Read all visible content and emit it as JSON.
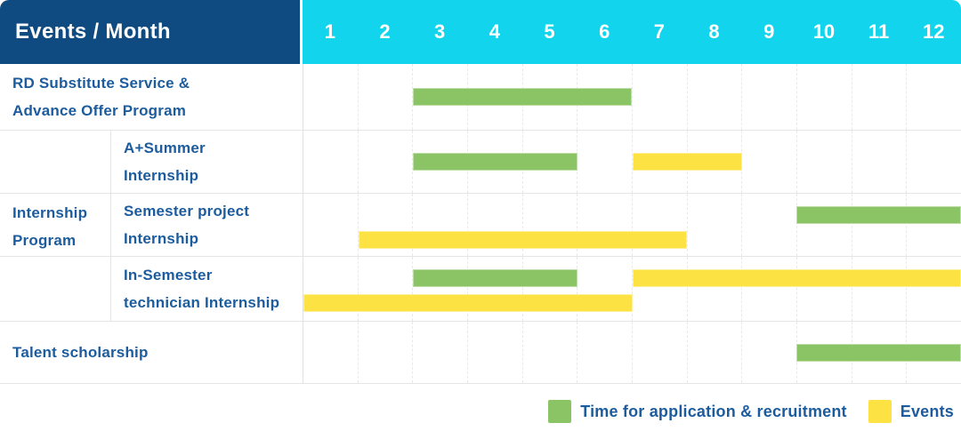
{
  "header": {
    "title": "Events / Month"
  },
  "colors": {
    "header_left_bg": "#0f4b80",
    "header_months_bg": "#12d4ec",
    "header_text": "#ffffff",
    "label_text": "#1c5c9e",
    "grid_line": "#e9e9e9",
    "row_border": "#e5e5e5",
    "application": "#8bc464",
    "events": "#fde244"
  },
  "chart_data": {
    "type": "gantt",
    "title": "Events / Month",
    "x_axis_label": "Month",
    "months": [
      1,
      2,
      3,
      4,
      5,
      6,
      7,
      8,
      9,
      10,
      11,
      12
    ],
    "legend_position": "bottom-right",
    "legend": [
      {
        "key": "application",
        "label": "Time for application & recruitment",
        "color": "#8bc464"
      },
      {
        "key": "events",
        "label": "Events",
        "color": "#fde244"
      }
    ],
    "group": {
      "label": "Internship Program",
      "lines": [
        "Internship",
        "Program"
      ]
    },
    "rows": [
      {
        "label": "RD Substitute Service & Advance Offer Program",
        "lines": [
          "RD Substitute Service &",
          "Advance Offer Program"
        ],
        "group": false,
        "bars": [
          {
            "series": "application",
            "start_month": 3,
            "end_month": 6,
            "track": "single"
          }
        ]
      },
      {
        "label": "A+Summer Internship",
        "lines": [
          "A+Summer",
          "Internship"
        ],
        "group": true,
        "bars": [
          {
            "series": "application",
            "start_month": 3,
            "end_month": 5,
            "track": "single"
          },
          {
            "series": "events",
            "start_month": 7,
            "end_month": 8,
            "track": "single"
          }
        ]
      },
      {
        "label": "Semester project Internship",
        "lines": [
          "Semester project",
          "Internship"
        ],
        "group": true,
        "bars": [
          {
            "series": "application",
            "start_month": 10,
            "end_month": 12,
            "track": "top"
          },
          {
            "series": "events",
            "start_month": 2,
            "end_month": 7,
            "track": "bottom"
          }
        ]
      },
      {
        "label": "In-Semester technician Internship",
        "lines": [
          "In-Semester",
          "technician Internship"
        ],
        "group": true,
        "bars": [
          {
            "series": "application",
            "start_month": 3,
            "end_month": 5,
            "track": "top"
          },
          {
            "series": "events",
            "start_month": 7,
            "end_month": 12,
            "track": "top"
          },
          {
            "series": "events",
            "start_month": 1,
            "end_month": 6,
            "track": "bottom"
          }
        ]
      },
      {
        "label": "Talent scholarship",
        "lines": [
          "Talent scholarship"
        ],
        "group": false,
        "bars": [
          {
            "series": "application",
            "start_month": 10,
            "end_month": 12,
            "track": "single"
          }
        ]
      }
    ]
  }
}
